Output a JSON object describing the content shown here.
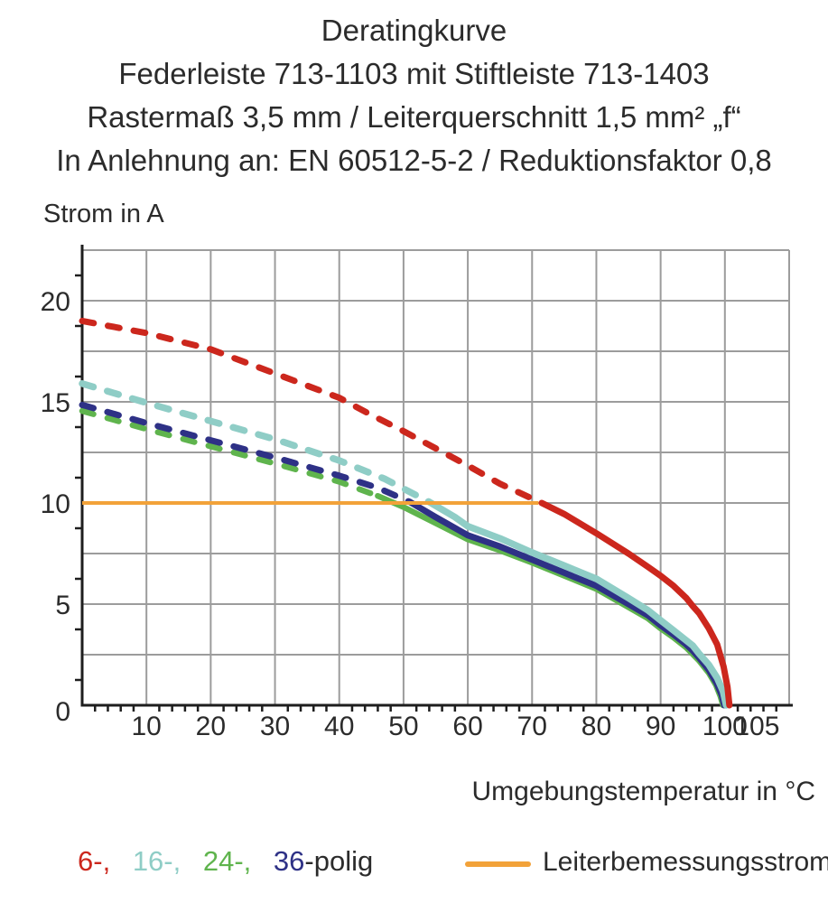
{
  "title": {
    "line1": "Deratingkurve",
    "line2": "Federleiste 713-1103 mit Stiftleiste 713-1403",
    "line3": "Rastermaß 3,5 mm / Leiterquerschnitt 1,5 mm² „f“",
    "line4": "In Anlehnung an: EN 60512-5-2 / Reduktionsfaktor 0,8"
  },
  "axes": {
    "y_title": "Strom in A",
    "x_title": "Umgebungstemperatur in °C"
  },
  "legend": {
    "items": [
      {
        "label": "6-,",
        "series": "6-polig",
        "color": "#cc271d"
      },
      {
        "label": "16-,",
        "series": "16-polig",
        "color": "#8fcdc6"
      },
      {
        "label": "24-,",
        "series": "24-polig",
        "color": "#5fb44d"
      },
      {
        "label": "36",
        "series": "36-polig",
        "color": "#2e3186"
      }
    ],
    "suffix": "-polig",
    "suffix_color": "#2b2b2b",
    "rated_current": {
      "label": "Leiterbemessungsstrom",
      "color": "#f2a239"
    }
  },
  "chart_data": {
    "type": "line",
    "title": "Deratingkurve",
    "xlabel": "Umgebungstemperatur in °C",
    "ylabel": "Strom in A",
    "xlim": [
      0,
      110
    ],
    "ylim": [
      0,
      22.5
    ],
    "grid": "on",
    "grid_color": "#9c9c9c",
    "axis_color": "#1e1e1e",
    "x_gridline_step": 10,
    "y_gridline_step": 2.5,
    "x_minor_tick_step": 2,
    "y_minor_tick_step": 1.25,
    "x_ticks": [
      {
        "v": 10,
        "label": "10"
      },
      {
        "v": 20,
        "label": "20"
      },
      {
        "v": 30,
        "label": "30"
      },
      {
        "v": 40,
        "label": "40"
      },
      {
        "v": 50,
        "label": "50"
      },
      {
        "v": 60,
        "label": "60"
      },
      {
        "v": 70,
        "label": "70"
      },
      {
        "v": 80,
        "label": "80"
      },
      {
        "v": 90,
        "label": "90"
      },
      {
        "v": 100,
        "label": "100"
      },
      {
        "v": 105,
        "label": "105"
      }
    ],
    "y_ticks": [
      {
        "v": 0,
        "label": "0"
      },
      {
        "v": 5,
        "label": "5"
      },
      {
        "v": 10,
        "label": "10"
      },
      {
        "v": 15,
        "label": "15"
      },
      {
        "v": 20,
        "label": "20"
      }
    ],
    "series": [
      {
        "name": "24-polig",
        "color": "#5fb44d",
        "width": 6.5,
        "dashed_points": [
          [
            0,
            14.55
          ],
          [
            10,
            13.65
          ],
          [
            20,
            12.8
          ],
          [
            30,
            11.95
          ],
          [
            40,
            11.05
          ],
          [
            46,
            10.35
          ]
        ],
        "solid_points": [
          [
            46,
            10.35
          ],
          [
            50,
            9.8
          ],
          [
            55,
            9.0
          ],
          [
            60,
            8.2
          ],
          [
            65,
            7.65
          ],
          [
            70,
            7.05
          ],
          [
            75,
            6.4
          ],
          [
            80,
            5.75
          ],
          [
            85,
            4.85
          ],
          [
            88,
            4.3
          ],
          [
            90,
            3.8
          ],
          [
            92,
            3.35
          ],
          [
            94,
            2.85
          ],
          [
            96,
            2.2
          ],
          [
            97.5,
            1.6
          ],
          [
            98.6,
            1.0
          ],
          [
            99.3,
            0.45
          ],
          [
            99.7,
            0
          ]
        ]
      },
      {
        "name": "36-polig",
        "color": "#2e3186",
        "width": 7,
        "dashed_points": [
          [
            0,
            14.85
          ],
          [
            10,
            13.95
          ],
          [
            20,
            13.1
          ],
          [
            30,
            12.25
          ],
          [
            40,
            11.35
          ],
          [
            46,
            10.75
          ],
          [
            51,
            10.05
          ]
        ],
        "solid_points": [
          [
            51,
            10.05
          ],
          [
            55,
            9.3
          ],
          [
            60,
            8.4
          ],
          [
            65,
            7.85
          ],
          [
            70,
            7.2
          ],
          [
            75,
            6.55
          ],
          [
            80,
            5.9
          ],
          [
            85,
            5.0
          ],
          [
            88,
            4.45
          ],
          [
            90,
            3.95
          ],
          [
            92,
            3.5
          ],
          [
            94,
            3.0
          ],
          [
            95,
            2.7
          ],
          [
            96,
            2.35
          ],
          [
            97.5,
            1.75
          ],
          [
            98.7,
            1.1
          ],
          [
            99.5,
            0.5
          ],
          [
            99.9,
            0
          ]
        ]
      },
      {
        "name": "16-polig",
        "color": "#8fcdc6",
        "width": 7.5,
        "dashed_points": [
          [
            0,
            15.9
          ],
          [
            10,
            14.95
          ],
          [
            20,
            14.05
          ],
          [
            30,
            13.15
          ],
          [
            40,
            12.1
          ],
          [
            47,
            11.2
          ],
          [
            54,
            10.05
          ]
        ],
        "solid_points": [
          [
            54,
            10.05
          ],
          [
            58,
            9.3
          ],
          [
            60,
            8.85
          ],
          [
            65,
            8.25
          ],
          [
            70,
            7.55
          ],
          [
            75,
            6.9
          ],
          [
            80,
            6.25
          ],
          [
            85,
            5.3
          ],
          [
            88,
            4.7
          ],
          [
            90,
            4.2
          ],
          [
            92,
            3.7
          ],
          [
            94,
            3.2
          ],
          [
            95,
            2.95
          ],
          [
            96,
            2.55
          ],
          [
            97.5,
            2.0
          ],
          [
            98.8,
            1.35
          ],
          [
            99.7,
            0.7
          ],
          [
            100.2,
            0
          ]
        ]
      },
      {
        "name": "6-polig",
        "color": "#cc271d",
        "width": 7,
        "dashed_points": [
          [
            0,
            19.0
          ],
          [
            10,
            18.4
          ],
          [
            20,
            17.6
          ],
          [
            30,
            16.4
          ],
          [
            40,
            15.2
          ],
          [
            45,
            14.35
          ],
          [
            50,
            13.55
          ],
          [
            55,
            12.7
          ],
          [
            60,
            11.85
          ],
          [
            65,
            10.95
          ],
          [
            71.5,
            10.0
          ]
        ],
        "solid_points": [
          [
            71.5,
            10.0
          ],
          [
            75,
            9.45
          ],
          [
            80,
            8.5
          ],
          [
            85,
            7.5
          ],
          [
            88,
            6.85
          ],
          [
            90,
            6.4
          ],
          [
            92,
            5.9
          ],
          [
            94,
            5.3
          ],
          [
            95,
            4.9
          ],
          [
            96,
            4.55
          ],
          [
            97.5,
            3.8
          ],
          [
            98.8,
            3.0
          ],
          [
            99.8,
            1.9
          ],
          [
            100.4,
            0.9
          ],
          [
            100.7,
            0
          ]
        ]
      }
    ],
    "reference_line": {
      "name": "Leiterbemessungsstrom",
      "color": "#f2a239",
      "y": 10,
      "x_start": 0,
      "x_end": 71
    }
  }
}
